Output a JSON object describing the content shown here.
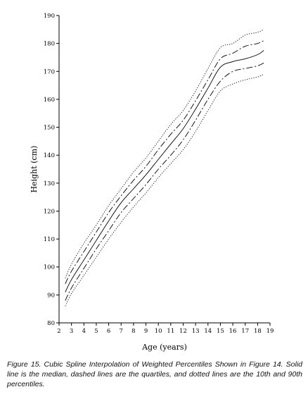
{
  "chart_data": {
    "type": "line",
    "xlabel": "Age (years)",
    "ylabel": "Height (cm)",
    "xlim": [
      2,
      19
    ],
    "ylim": [
      80,
      190
    ],
    "xticks": [
      2,
      3,
      4,
      5,
      6,
      7,
      8,
      9,
      10,
      11,
      12,
      13,
      14,
      15,
      16,
      17,
      18,
      19
    ],
    "yticks": [
      80,
      90,
      100,
      110,
      120,
      130,
      140,
      150,
      160,
      170,
      180,
      190
    ],
    "grid": false,
    "x": [
      2.5,
      3,
      4,
      5,
      6,
      7,
      8,
      9,
      10,
      11,
      12,
      13,
      14,
      15,
      16,
      17,
      18,
      18.5
    ],
    "series": [
      {
        "style": "dotted",
        "values": [
          96,
          101,
          108.5,
          115,
          122,
          128,
          134,
          139,
          145,
          151,
          156,
          163,
          171,
          178.5,
          180,
          183,
          184,
          185
        ]
      },
      {
        "style": "dashed",
        "values": [
          94,
          98.5,
          105.5,
          112.5,
          119.5,
          125.5,
          131,
          136,
          142,
          147.5,
          152.5,
          159.5,
          167,
          174.5,
          176.5,
          179,
          180,
          181
        ]
      },
      {
        "style": "solid",
        "values": [
          91,
          95.5,
          102.5,
          109.5,
          116.5,
          123,
          128,
          133,
          138.5,
          144,
          149.5,
          156.5,
          164,
          171.5,
          173.5,
          174.5,
          176,
          177.5
        ]
      },
      {
        "style": "dashed",
        "values": [
          88,
          92.5,
          99.5,
          106.5,
          113,
          119.5,
          124.5,
          129.5,
          135,
          140,
          145.5,
          152.5,
          160,
          166.5,
          170,
          171,
          172,
          173
        ]
      },
      {
        "style": "dotted",
        "values": [
          86,
          90.5,
          97,
          103.5,
          110,
          116,
          121.5,
          126.5,
          132,
          137,
          142,
          148.5,
          156,
          163,
          165.5,
          167,
          168,
          169
        ]
      }
    ]
  },
  "caption": "Figure 15. Cubic Spline Interpolation of Weighted Percentiles Shown in Figure 14. Solid line is the median, dashed lines are the quartiles, and dotted lines are the 10th and 90th percentiles."
}
